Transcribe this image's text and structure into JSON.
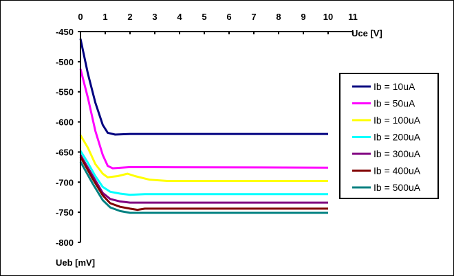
{
  "chart_data": {
    "type": "line",
    "title": "",
    "xlabel": "Uce [V]",
    "ylabel": "Ueb [mV]",
    "xlim": [
      0,
      11
    ],
    "ylim": [
      -800,
      -450
    ],
    "x_ticks": [
      0,
      1,
      2,
      3,
      4,
      5,
      6,
      7,
      8,
      9,
      10,
      11
    ],
    "y_ticks": [
      -450,
      -500,
      -550,
      -600,
      -650,
      -700,
      -750,
      -800
    ],
    "x_axis_position": "top",
    "grid": false,
    "legend_position": "right",
    "series": [
      {
        "name": "Ib = 10uA",
        "color": "#000080",
        "points": [
          [
            0,
            -462
          ],
          [
            0.3,
            -520
          ],
          [
            0.6,
            -568
          ],
          [
            0.9,
            -605
          ],
          [
            1.1,
            -618
          ],
          [
            1.4,
            -621
          ],
          [
            2,
            -620
          ],
          [
            10,
            -620
          ]
        ]
      },
      {
        "name": "Ib = 50uA",
        "color": "#FF00FF",
        "points": [
          [
            0,
            -512
          ],
          [
            0.3,
            -560
          ],
          [
            0.6,
            -615
          ],
          [
            0.9,
            -655
          ],
          [
            1.1,
            -673
          ],
          [
            1.3,
            -677
          ],
          [
            2,
            -675
          ],
          [
            10,
            -676
          ]
        ]
      },
      {
        "name": "Ib = 100uA",
        "color": "#FFFF00",
        "points": [
          [
            0,
            -622
          ],
          [
            0.3,
            -643
          ],
          [
            0.6,
            -670
          ],
          [
            0.9,
            -686
          ],
          [
            1.1,
            -692
          ],
          [
            1.5,
            -690
          ],
          [
            1.9,
            -686
          ],
          [
            2.2,
            -690
          ],
          [
            2.8,
            -696
          ],
          [
            3.5,
            -698
          ],
          [
            10,
            -698
          ]
        ]
      },
      {
        "name": "Ib = 200uA",
        "color": "#00FFFF",
        "points": [
          [
            0,
            -648
          ],
          [
            0.3,
            -668
          ],
          [
            0.6,
            -690
          ],
          [
            0.9,
            -708
          ],
          [
            1.2,
            -716
          ],
          [
            1.6,
            -719
          ],
          [
            2,
            -721
          ],
          [
            2.6,
            -720
          ],
          [
            10,
            -720
          ]
        ]
      },
      {
        "name": "Ib = 300uA",
        "color": "#800080",
        "points": [
          [
            0,
            -655
          ],
          [
            0.5,
            -690
          ],
          [
            0.9,
            -718
          ],
          [
            1.2,
            -728
          ],
          [
            1.6,
            -732
          ],
          [
            2,
            -734
          ],
          [
            10,
            -734
          ]
        ]
      },
      {
        "name": "Ib = 400uA",
        "color": "#800000",
        "points": [
          [
            0,
            -658
          ],
          [
            0.5,
            -695
          ],
          [
            0.9,
            -722
          ],
          [
            1.2,
            -735
          ],
          [
            1.6,
            -741
          ],
          [
            2,
            -744
          ],
          [
            2.3,
            -746
          ],
          [
            2.6,
            -744
          ],
          [
            10,
            -744
          ]
        ]
      },
      {
        "name": "Ib = 500uA",
        "color": "#008080",
        "points": [
          [
            0,
            -666
          ],
          [
            0.5,
            -703
          ],
          [
            0.9,
            -730
          ],
          [
            1.2,
            -742
          ],
          [
            1.6,
            -748
          ],
          [
            2,
            -751
          ],
          [
            2.5,
            -751
          ],
          [
            10,
            -751
          ]
        ]
      }
    ]
  }
}
